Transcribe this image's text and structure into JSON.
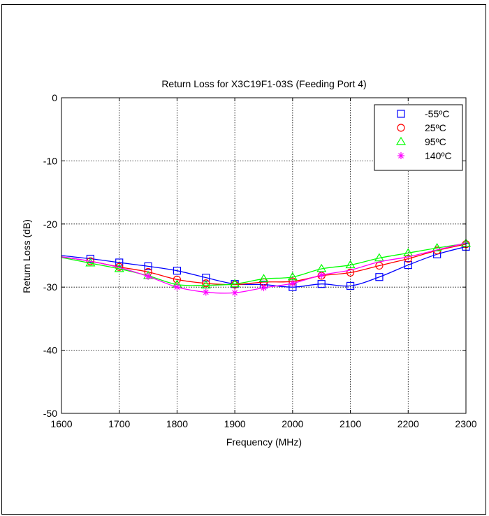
{
  "chart_data": {
    "type": "line",
    "title": "Return Loss for X3C19F1-03S (Feeding Port 4)",
    "xlabel": "Frequency (MHz)",
    "ylabel": "Return Loss (dB)",
    "xlim": [
      1600,
      2300
    ],
    "ylim": [
      -50,
      0
    ],
    "xticks": [
      1600,
      1700,
      1800,
      1900,
      2000,
      2100,
      2200,
      2300
    ],
    "yticks": [
      0,
      -10,
      -20,
      -30,
      -40,
      -50
    ],
    "grid": true,
    "legend_position": "top-right",
    "series": [
      {
        "name": "-55ºC",
        "marker": "square",
        "color": "#0000ff",
        "x": [
          1600,
          1650,
          1700,
          1750,
          1800,
          1850,
          1900,
          1950,
          2000,
          2050,
          2100,
          2150,
          2200,
          2250,
          2300
        ],
        "y": [
          -25.0,
          -25.5,
          -26.1,
          -26.7,
          -27.4,
          -28.5,
          -29.5,
          -29.6,
          -30.0,
          -29.5,
          -29.8,
          -28.4,
          -26.5,
          -24.8,
          -23.6
        ],
        "markers": [
          1650,
          1700,
          1750,
          1800,
          1850,
          1900,
          1950,
          2000,
          2050,
          2100,
          2150,
          2200,
          2250,
          2300
        ]
      },
      {
        "name": "25ºC",
        "marker": "circle",
        "color": "#ff0000",
        "x": [
          1600,
          1650,
          1700,
          1750,
          1800,
          1850,
          1900,
          1950,
          2000,
          2050,
          2100,
          2150,
          2200,
          2250,
          2300
        ],
        "y": [
          -25.2,
          -25.9,
          -26.8,
          -27.6,
          -28.8,
          -29.4,
          -29.6,
          -29.2,
          -29.1,
          -28.2,
          -27.7,
          -26.6,
          -25.5,
          -24.2,
          -23.2
        ],
        "markers": [
          1650,
          1700,
          1750,
          1800,
          1850,
          1900,
          1950,
          2000,
          2050,
          2100,
          2150,
          2200,
          2250,
          2300
        ]
      },
      {
        "name": "95ºC",
        "marker": "triangle",
        "color": "#00ff00",
        "x": [
          1600,
          1650,
          1700,
          1750,
          1800,
          1850,
          1900,
          1950,
          2000,
          2050,
          2100,
          2150,
          2200,
          2250,
          2300
        ],
        "y": [
          -25.3,
          -26.2,
          -27.1,
          -28.2,
          -29.6,
          -29.7,
          -29.5,
          -28.7,
          -28.4,
          -27.1,
          -26.5,
          -25.4,
          -24.6,
          -23.8,
          -23.1
        ],
        "markers": [
          1650,
          1700,
          1750,
          1800,
          1850,
          1900,
          1950,
          2000,
          2050,
          2100,
          2150,
          2200,
          2250,
          2300
        ]
      },
      {
        "name": "140ºC",
        "marker": "asterisk",
        "color": "#ff00ff",
        "x": [
          1600,
          1650,
          1700,
          1750,
          1800,
          1850,
          1900,
          1950,
          2000,
          2050,
          2100,
          2150,
          2200,
          2250,
          2300
        ],
        "y": [
          -25.2,
          -25.9,
          -26.9,
          -28.3,
          -30.0,
          -30.8,
          -30.9,
          -30.1,
          -29.4,
          -28.1,
          -27.3,
          -26.0,
          -25.2,
          -24.1,
          -23.0
        ],
        "markers": [
          1750,
          1800,
          1850,
          1900,
          1950,
          2000,
          2050
        ]
      }
    ]
  }
}
